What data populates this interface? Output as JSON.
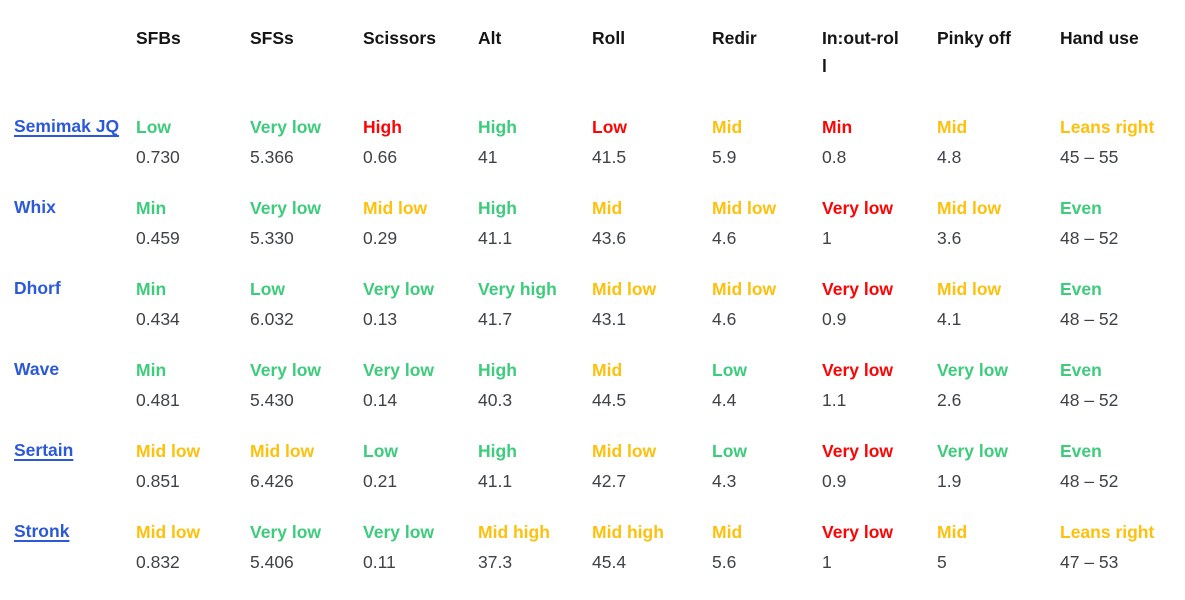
{
  "colors": {
    "green": "#3dcc7b",
    "yellow": "#fdc10d",
    "red": "#fb0505",
    "link": "#2b59d8",
    "value_text": "#3f4347",
    "header_text": "#151515"
  },
  "table": {
    "columns": [
      "",
      "SFBs",
      "SFSs",
      "Scissors",
      "Alt",
      "Roll",
      "Redir",
      "In:out-roll",
      "Pinky off",
      "Hand use"
    ],
    "rows": [
      {
        "layout": "Semimak JQ",
        "underlined": true,
        "cells": [
          {
            "rating": "Low",
            "color": "green",
            "value": "0.730"
          },
          {
            "rating": "Very low",
            "color": "green",
            "value": "5.366"
          },
          {
            "rating": "High",
            "color": "red",
            "value": "0.66"
          },
          {
            "rating": "High",
            "color": "green",
            "value": "41"
          },
          {
            "rating": "Low",
            "color": "red",
            "value": "41.5"
          },
          {
            "rating": "Mid",
            "color": "yellow",
            "value": "5.9"
          },
          {
            "rating": "Min",
            "color": "red",
            "value": "0.8"
          },
          {
            "rating": "Mid",
            "color": "yellow",
            "value": "4.8"
          },
          {
            "rating": "Leans right",
            "color": "yellow",
            "value": "45 – 55"
          }
        ]
      },
      {
        "layout": "Whix",
        "underlined": false,
        "cells": [
          {
            "rating": "Min",
            "color": "green",
            "value": "0.459"
          },
          {
            "rating": "Very low",
            "color": "green",
            "value": "5.330"
          },
          {
            "rating": "Mid low",
            "color": "yellow",
            "value": "0.29"
          },
          {
            "rating": "High",
            "color": "green",
            "value": "41.1"
          },
          {
            "rating": "Mid",
            "color": "yellow",
            "value": "43.6"
          },
          {
            "rating": "Mid low",
            "color": "yellow",
            "value": "4.6"
          },
          {
            "rating": "Very low",
            "color": "red",
            "value": "1"
          },
          {
            "rating": "Mid low",
            "color": "yellow",
            "value": "3.6"
          },
          {
            "rating": "Even",
            "color": "green",
            "value": "48 – 52"
          }
        ]
      },
      {
        "layout": "Dhorf",
        "underlined": false,
        "cells": [
          {
            "rating": "Min",
            "color": "green",
            "value": "0.434"
          },
          {
            "rating": "Low",
            "color": "green",
            "value": "6.032"
          },
          {
            "rating": "Very low",
            "color": "green",
            "value": "0.13"
          },
          {
            "rating": "Very high",
            "color": "green",
            "value": "41.7"
          },
          {
            "rating": "Mid low",
            "color": "yellow",
            "value": "43.1"
          },
          {
            "rating": "Mid low",
            "color": "yellow",
            "value": "4.6"
          },
          {
            "rating": "Very low",
            "color": "red",
            "value": "0.9"
          },
          {
            "rating": "Mid low",
            "color": "yellow",
            "value": "4.1"
          },
          {
            "rating": "Even",
            "color": "green",
            "value": "48 – 52"
          }
        ]
      },
      {
        "layout": "Wave",
        "underlined": false,
        "cells": [
          {
            "rating": "Min",
            "color": "green",
            "value": "0.481"
          },
          {
            "rating": "Very low",
            "color": "green",
            "value": "5.430"
          },
          {
            "rating": "Very low",
            "color": "green",
            "value": "0.14"
          },
          {
            "rating": "High",
            "color": "green",
            "value": "40.3"
          },
          {
            "rating": "Mid",
            "color": "yellow",
            "value": "44.5"
          },
          {
            "rating": "Low",
            "color": "green",
            "value": "4.4"
          },
          {
            "rating": "Very low",
            "color": "red",
            "value": "1.1"
          },
          {
            "rating": "Very low",
            "color": "green",
            "value": "2.6"
          },
          {
            "rating": "Even",
            "color": "green",
            "value": "48 – 52"
          }
        ]
      },
      {
        "layout": "Sertain",
        "underlined": true,
        "cells": [
          {
            "rating": "Mid low",
            "color": "yellow",
            "value": "0.851"
          },
          {
            "rating": "Mid low",
            "color": "yellow",
            "value": "6.426"
          },
          {
            "rating": "Low",
            "color": "green",
            "value": "0.21"
          },
          {
            "rating": "High",
            "color": "green",
            "value": "41.1"
          },
          {
            "rating": "Mid low",
            "color": "yellow",
            "value": "42.7"
          },
          {
            "rating": "Low",
            "color": "green",
            "value": "4.3"
          },
          {
            "rating": "Very low",
            "color": "red",
            "value": "0.9"
          },
          {
            "rating": "Very low",
            "color": "green",
            "value": "1.9"
          },
          {
            "rating": "Even",
            "color": "green",
            "value": "48 – 52"
          }
        ]
      },
      {
        "layout": "Stronk",
        "underlined": true,
        "cells": [
          {
            "rating": "Mid low",
            "color": "yellow",
            "value": "0.832"
          },
          {
            "rating": "Very low",
            "color": "green",
            "value": "5.406"
          },
          {
            "rating": "Very low",
            "color": "green",
            "value": "0.11"
          },
          {
            "rating": "Mid high",
            "color": "yellow",
            "value": "37.3"
          },
          {
            "rating": "Mid high",
            "color": "yellow",
            "value": "45.4"
          },
          {
            "rating": "Mid",
            "color": "yellow",
            "value": "5.6"
          },
          {
            "rating": "Very low",
            "color": "red",
            "value": "1"
          },
          {
            "rating": "Mid",
            "color": "yellow",
            "value": "5"
          },
          {
            "rating": "Leans right",
            "color": "yellow",
            "value": "47 – 53"
          }
        ]
      }
    ]
  }
}
